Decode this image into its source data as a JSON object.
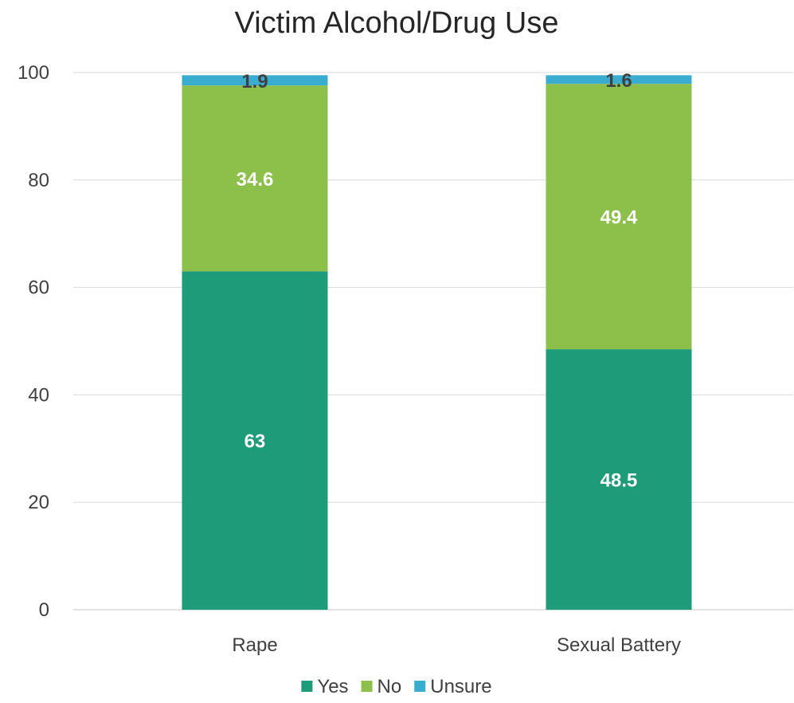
{
  "chart_data": {
    "type": "bar",
    "stacked": true,
    "title": "Victim Alcohol/Drug Use",
    "xlabel": "",
    "ylabel": "",
    "categories": [
      "Rape",
      "Sexual Battery"
    ],
    "ylim": [
      0,
      100
    ],
    "yticks": [
      0,
      20,
      40,
      60,
      80,
      100
    ],
    "grid": true,
    "legend_position": "bottom",
    "series": [
      {
        "name": "Yes",
        "values": [
          63,
          48.5
        ],
        "color": "#1e9b78",
        "label_color": "#ffffff"
      },
      {
        "name": "No",
        "values": [
          34.6,
          49.4
        ],
        "color": "#8dc04a",
        "label_color": "#ffffff"
      },
      {
        "name": "Unsure",
        "values": [
          1.9,
          1.6
        ],
        "color": "#3aaccf",
        "label_color": "#404040"
      }
    ]
  }
}
